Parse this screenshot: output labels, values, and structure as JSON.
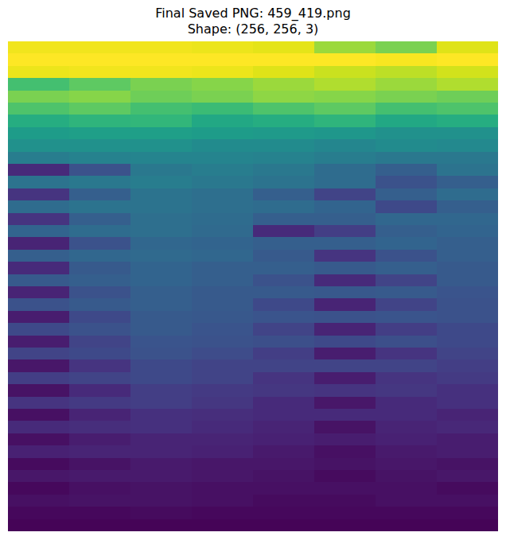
{
  "chart_data": {
    "type": "heatmap",
    "title": "Final Saved PNG: 459_419.png\nShape: (256, 256, 3)",
    "zlim": [
      0,
      1
    ],
    "tick_labels": false,
    "values": [
      [
        0.98,
        0.98,
        0.98,
        0.97,
        0.96,
        0.85,
        0.8,
        0.95
      ],
      [
        1,
        1,
        1,
        1,
        1,
        1,
        0.99,
        1
      ],
      [
        0.97,
        0.98,
        0.98,
        0.97,
        0.95,
        0.92,
        0.9,
        0.93
      ],
      [
        0.7,
        0.75,
        0.8,
        0.82,
        0.85,
        0.88,
        0.85,
        0.88
      ],
      [
        0.8,
        0.82,
        0.78,
        0.8,
        0.83,
        0.82,
        0.8,
        0.78
      ],
      [
        0.72,
        0.75,
        0.7,
        0.68,
        0.72,
        0.75,
        0.7,
        0.72
      ],
      [
        0.62,
        0.65,
        0.66,
        0.6,
        0.62,
        0.65,
        0.6,
        0.62
      ],
      [
        0.55,
        0.56,
        0.56,
        0.55,
        0.54,
        0.53,
        0.5,
        0.5
      ],
      [
        0.5,
        0.5,
        0.5,
        0.48,
        0.48,
        0.46,
        0.48,
        0.47
      ],
      [
        0.42,
        0.44,
        0.45,
        0.45,
        0.44,
        0.42,
        0.4,
        0.4
      ],
      [
        0.12,
        0.25,
        0.4,
        0.42,
        0.4,
        0.35,
        0.3,
        0.38
      ],
      [
        0.38,
        0.4,
        0.42,
        0.4,
        0.38,
        0.35,
        0.25,
        0.3
      ],
      [
        0.15,
        0.3,
        0.38,
        0.36,
        0.3,
        0.2,
        0.3,
        0.35
      ],
      [
        0.35,
        0.38,
        0.38,
        0.36,
        0.35,
        0.32,
        0.22,
        0.3
      ],
      [
        0.15,
        0.3,
        0.36,
        0.35,
        0.3,
        0.3,
        0.33,
        0.33
      ],
      [
        0.32,
        0.35,
        0.36,
        0.34,
        0.12,
        0.18,
        0.3,
        0.32
      ],
      [
        0.1,
        0.25,
        0.33,
        0.32,
        0.3,
        0.3,
        0.32,
        0.3
      ],
      [
        0.3,
        0.33,
        0.34,
        0.33,
        0.28,
        0.15,
        0.25,
        0.3
      ],
      [
        0.12,
        0.28,
        0.32,
        0.3,
        0.3,
        0.28,
        0.3,
        0.28
      ],
      [
        0.28,
        0.3,
        0.32,
        0.3,
        0.25,
        0.12,
        0.2,
        0.28
      ],
      [
        0.1,
        0.25,
        0.3,
        0.28,
        0.28,
        0.27,
        0.28,
        0.26
      ],
      [
        0.25,
        0.28,
        0.3,
        0.28,
        0.22,
        0.1,
        0.2,
        0.25
      ],
      [
        0.08,
        0.22,
        0.28,
        0.27,
        0.26,
        0.25,
        0.26,
        0.25
      ],
      [
        0.22,
        0.25,
        0.28,
        0.26,
        0.2,
        0.1,
        0.18,
        0.22
      ],
      [
        0.08,
        0.2,
        0.26,
        0.25,
        0.24,
        0.22,
        0.24,
        0.22
      ],
      [
        0.2,
        0.22,
        0.25,
        0.23,
        0.18,
        0.08,
        0.15,
        0.2
      ],
      [
        0.06,
        0.15,
        0.22,
        0.2,
        0.2,
        0.2,
        0.2,
        0.18
      ],
      [
        0.18,
        0.2,
        0.22,
        0.2,
        0.15,
        0.08,
        0.15,
        0.17
      ],
      [
        0.05,
        0.12,
        0.18,
        0.17,
        0.16,
        0.15,
        0.16,
        0.14
      ],
      [
        0.15,
        0.17,
        0.18,
        0.16,
        0.12,
        0.06,
        0.12,
        0.14
      ],
      [
        0.04,
        0.1,
        0.14,
        0.13,
        0.12,
        0.12,
        0.12,
        0.1
      ],
      [
        0.12,
        0.13,
        0.14,
        0.12,
        0.1,
        0.05,
        0.1,
        0.11
      ],
      [
        0.04,
        0.08,
        0.1,
        0.1,
        0.09,
        0.08,
        0.09,
        0.08
      ],
      [
        0.09,
        0.1,
        0.1,
        0.09,
        0.07,
        0.04,
        0.07,
        0.08
      ],
      [
        0.03,
        0.05,
        0.07,
        0.06,
        0.06,
        0.05,
        0.06,
        0.05
      ],
      [
        0.06,
        0.07,
        0.07,
        0.06,
        0.05,
        0.03,
        0.05,
        0.06
      ],
      [
        0.02,
        0.04,
        0.05,
        0.04,
        0.04,
        0.04,
        0.04,
        0.03
      ],
      [
        0.04,
        0.05,
        0.05,
        0.04,
        0.03,
        0.03,
        0.04,
        0.04
      ],
      [
        0.02,
        0.02,
        0.03,
        0.02,
        0.02,
        0.02,
        0.02,
        0.02
      ],
      [
        0.01,
        0.01,
        0.01,
        0.01,
        0.01,
        0.01,
        0.01,
        0.01
      ]
    ]
  }
}
